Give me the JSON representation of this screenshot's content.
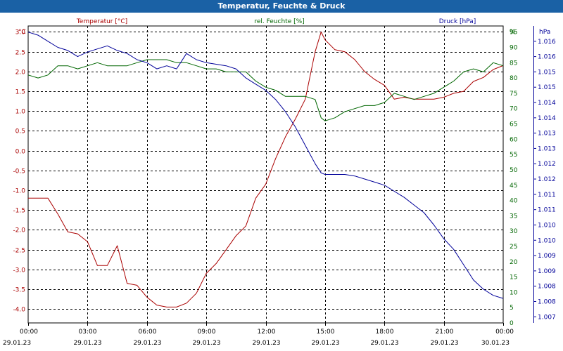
{
  "chart_data": {
    "type": "line",
    "title": "Temperatur, Feuchte & Druck",
    "grid": true,
    "x_ticks": [
      {
        "hours": 0,
        "time": "00:00",
        "date": "29.01.23"
      },
      {
        "hours": 3,
        "time": "03:00",
        "date": "29.01.23"
      },
      {
        "hours": 6,
        "time": "06:00",
        "date": "29.01.23"
      },
      {
        "hours": 9,
        "time": "09:00",
        "date": "29.01.23"
      },
      {
        "hours": 12,
        "time": "12:00",
        "date": "29.01.23"
      },
      {
        "hours": 15,
        "time": "15:00",
        "date": "29.01.23"
      },
      {
        "hours": 18,
        "time": "18:00",
        "date": "29.01.23"
      },
      {
        "hours": 21,
        "time": "21:00",
        "date": "29.01.23"
      },
      {
        "hours": 24,
        "time": "00:00",
        "date": "30.01.23"
      }
    ],
    "xlim": [
      0,
      24
    ],
    "axes": {
      "left": {
        "unit": "°C",
        "color": "#aa0000",
        "range": [
          -4.35,
          3.15
        ],
        "ticks": [
          3.0,
          2.5,
          2.0,
          1.5,
          1.0,
          0.5,
          0.0,
          -0.5,
          -1.0,
          -1.5,
          -2.0,
          -2.5,
          -3.0,
          -3.5,
          -4.0
        ],
        "tick_labels": [
          "3.0",
          "2.5",
          "2.0",
          "1.5",
          "1.0",
          "0.5",
          "0.0",
          "-0.5",
          "-1.0",
          "-1.5",
          "-2.0",
          "-2.5",
          "-3.0",
          "-3.5",
          "-4.0"
        ]
      },
      "mid": {
        "unit": "%",
        "color": "#006600",
        "range": [
          0,
          97
        ],
        "ticks": [
          95,
          90,
          85,
          80,
          75,
          70,
          65,
          60,
          55,
          50,
          45,
          40,
          35,
          30,
          25,
          20,
          15,
          10,
          5,
          0
        ]
      },
      "right": {
        "unit": "hPa",
        "color": "#000099",
        "range": [
          1006.8,
          1016.5
        ],
        "ticks": [
          1016,
          1015.5,
          1015,
          1014.5,
          1014,
          1013.5,
          1013,
          1012.5,
          1012,
          1011.5,
          1011,
          1010.5,
          1010,
          1009.5,
          1009,
          1008.5,
          1008,
          1007.5,
          1007
        ],
        "tick_labels": [
          "1.016",
          "1.016",
          "1.015",
          "1.015",
          "1.014",
          "1.014",
          "1.013",
          "1.013",
          "1.012",
          "1.012",
          "1.011",
          "1.011",
          "1.010",
          "1.010",
          "1.009",
          "1.009",
          "1.008",
          "1.008",
          "1.007"
        ]
      }
    },
    "series": [
      {
        "name": "Temperatur [°C]",
        "axis": "left",
        "color": "#aa0000",
        "x": [
          0,
          0.5,
          1,
          1.5,
          2,
          2.5,
          3,
          3.5,
          4,
          4.5,
          5,
          5.5,
          6,
          6.5,
          7,
          7.5,
          8,
          8.5,
          9,
          9.5,
          10,
          10.5,
          11,
          11.5,
          12,
          12.5,
          13,
          13.5,
          14,
          14.5,
          14.8,
          15,
          15.5,
          16,
          16.5,
          17,
          17.5,
          18,
          18.5,
          19,
          19.5,
          20,
          20.5,
          21,
          21.5,
          22,
          22.5,
          23,
          23.5,
          24
        ],
        "y": [
          -1.2,
          -1.2,
          -1.2,
          -1.6,
          -2.05,
          -2.1,
          -2.3,
          -2.9,
          -2.9,
          -2.4,
          -3.35,
          -3.4,
          -3.7,
          -3.9,
          -3.95,
          -3.95,
          -3.85,
          -3.6,
          -3.1,
          -2.85,
          -2.5,
          -2.15,
          -1.9,
          -1.2,
          -0.85,
          -0.2,
          0.35,
          0.8,
          1.3,
          2.5,
          3.0,
          2.8,
          2.55,
          2.5,
          2.3,
          2.0,
          1.8,
          1.65,
          1.3,
          1.35,
          1.3,
          1.3,
          1.3,
          1.35,
          1.45,
          1.5,
          1.75,
          1.85,
          2.05,
          2.15
        ]
      },
      {
        "name": "rel. Feuchte [%]",
        "axis": "mid",
        "color": "#006600",
        "x": [
          0,
          0.5,
          1,
          1.5,
          2,
          2.5,
          3,
          3.5,
          4,
          4.5,
          5,
          5.5,
          6,
          6.5,
          7,
          7.5,
          8,
          8.5,
          9,
          9.5,
          10,
          10.5,
          11,
          11.5,
          12,
          12.5,
          13,
          13.5,
          14,
          14.5,
          14.8,
          15,
          15.5,
          16,
          16.5,
          17,
          17.5,
          18,
          18.5,
          19,
          19.5,
          20,
          20.5,
          21,
          21.5,
          22,
          22.5,
          23,
          23.5,
          24
        ],
        "y": [
          81,
          80,
          81,
          84,
          84,
          83,
          84,
          85,
          84,
          84,
          84,
          85,
          86,
          86,
          86,
          85,
          85,
          84,
          83,
          83,
          82,
          82,
          82,
          79,
          77,
          76,
          74,
          74,
          74,
          73,
          67,
          66,
          67,
          69,
          70,
          71,
          71,
          72,
          75,
          74,
          73,
          74,
          75,
          77,
          79,
          82,
          83,
          82,
          85,
          84
        ]
      },
      {
        "name": "Druck [hPa]",
        "axis": "right",
        "color": "#000099",
        "x": [
          0,
          0.5,
          1,
          1.5,
          2,
          2.5,
          3,
          3.5,
          4,
          4.5,
          5,
          5.5,
          6,
          6.5,
          7,
          7.5,
          8,
          8.5,
          9,
          9.5,
          10,
          10.5,
          11,
          11.5,
          12,
          12.5,
          13,
          13.5,
          14,
          14.5,
          14.8,
          15,
          15.5,
          16,
          16.5,
          17,
          17.5,
          18,
          18.5,
          19,
          19.5,
          20,
          20.5,
          21,
          21.5,
          22,
          22.5,
          23,
          23.5,
          24
        ],
        "y": [
          1016.3,
          1016.2,
          1016.0,
          1015.8,
          1015.7,
          1015.5,
          1015.65,
          1015.75,
          1015.85,
          1015.7,
          1015.6,
          1015.4,
          1015.3,
          1015.1,
          1015.2,
          1015.1,
          1015.6,
          1015.4,
          1015.3,
          1015.25,
          1015.2,
          1015.1,
          1014.8,
          1014.6,
          1014.4,
          1014.1,
          1013.7,
          1013.2,
          1012.6,
          1012.0,
          1011.7,
          1011.65,
          1011.65,
          1011.65,
          1011.6,
          1011.5,
          1011.4,
          1011.3,
          1011.1,
          1010.9,
          1010.65,
          1010.4,
          1010.0,
          1009.55,
          1009.2,
          1008.7,
          1008.2,
          1007.9,
          1007.7,
          1007.6
        ]
      }
    ]
  }
}
